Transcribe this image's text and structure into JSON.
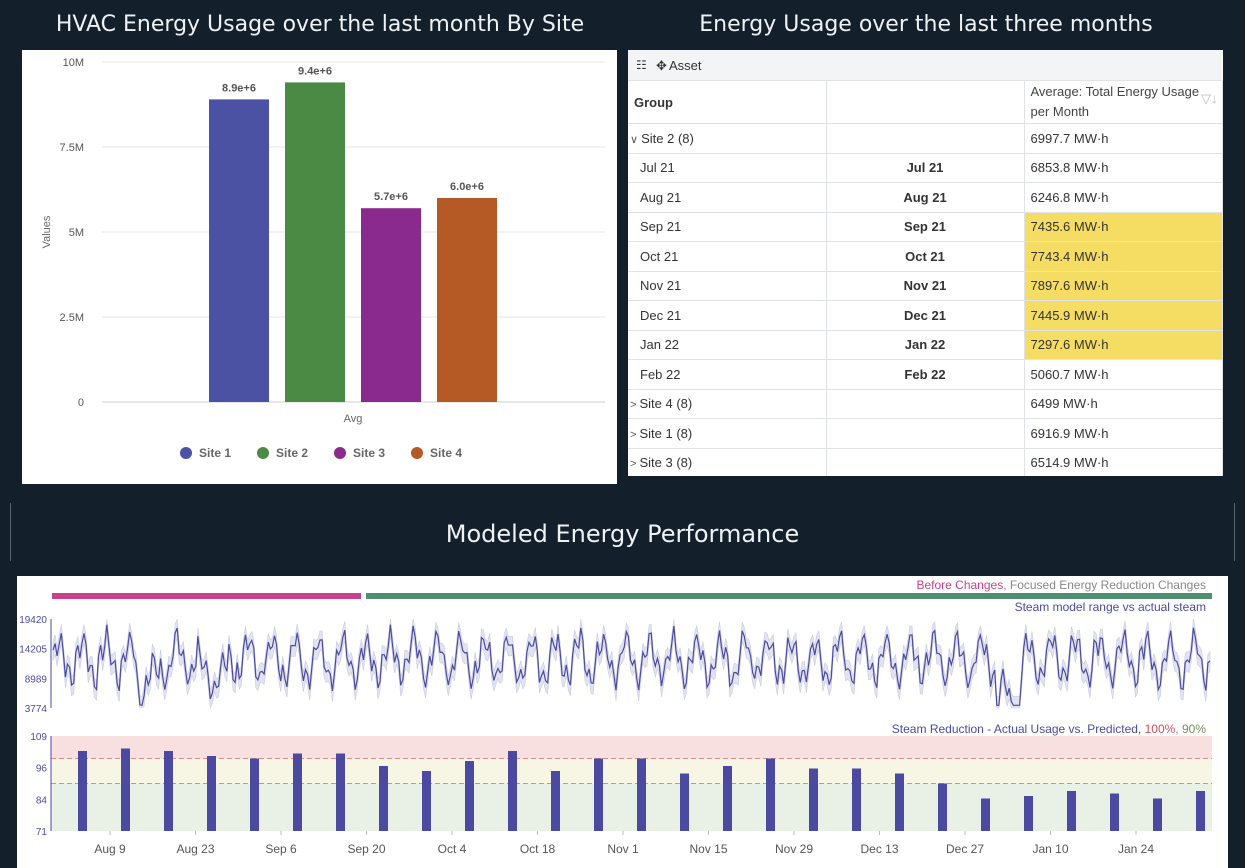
{
  "bar_panel": {
    "title": "HVAC Energy Usage over the last month By Site",
    "legend": [
      "Site 1",
      "Site 2",
      "Site 3",
      "Site 4"
    ]
  },
  "table_panel": {
    "title": "Energy Usage over the last three months",
    "toolbar_asset": "Asset",
    "col_group": "Group",
    "col_value": "Average: Total Energy Usage per Month",
    "rows": [
      {
        "group": "Site 2 (8)",
        "mid": "",
        "value": "6997.7 MW·h",
        "type": "group-open",
        "hl": false
      },
      {
        "group": "Jul 21",
        "mid": "Jul 21",
        "value": "6853.8 MW·h",
        "type": "child",
        "hl": false
      },
      {
        "group": "Aug 21",
        "mid": "Aug 21",
        "value": "6246.8 MW·h",
        "type": "child",
        "hl": false
      },
      {
        "group": "Sep 21",
        "mid": "Sep 21",
        "value": "7435.6 MW·h",
        "type": "child",
        "hl": true
      },
      {
        "group": "Oct 21",
        "mid": "Oct 21",
        "value": "7743.4 MW·h",
        "type": "child",
        "hl": true
      },
      {
        "group": "Nov 21",
        "mid": "Nov 21",
        "value": "7897.6 MW·h",
        "type": "child",
        "hl": true
      },
      {
        "group": "Dec 21",
        "mid": "Dec 21",
        "value": "7445.9 MW·h",
        "type": "child",
        "hl": true
      },
      {
        "group": "Jan 22",
        "mid": "Jan 22",
        "value": "7297.6 MW·h",
        "type": "child",
        "hl": true
      },
      {
        "group": "Feb 22",
        "mid": "Feb 22",
        "value": "5060.7 MW·h",
        "type": "child",
        "hl": false
      },
      {
        "group": "Site 4 (8)",
        "mid": "",
        "value": "6499 MW·h",
        "type": "group",
        "hl": false
      },
      {
        "group": "Site 1 (8)",
        "mid": "",
        "value": "6916.9 MW·h",
        "type": "group",
        "hl": false
      },
      {
        "group": "Site 3 (8)",
        "mid": "",
        "value": "6514.9 MW·h",
        "type": "group",
        "hl": false
      }
    ]
  },
  "modeled": {
    "title": "Modeled Energy Performance",
    "legend_before": "Before Changes",
    "legend_sep": ", ",
    "legend_after": "Focused Energy Reduction Changes",
    "steam_label": "Steam model range vs actual steam",
    "reduction_label": "Steam Reduction - Actual Usage vs. Predicted, ",
    "pct_100": "100%",
    "pct_sep": ", ",
    "pct_90": "90%"
  },
  "colors": {
    "site1": "#4b51a3",
    "site2": "#4a8a45",
    "site3": "#8a2a8e",
    "site4": "#b55a25",
    "before": "#c7418e",
    "after": "#4e8f72",
    "line": "#4b4aa0",
    "band": "#e1e3f0",
    "highlight": "#f5dd63"
  },
  "chart_data": [
    {
      "type": "bar",
      "title": "HVAC Energy Usage over the last month By Site",
      "categories": [
        "Avg"
      ],
      "xlabel": "Avg",
      "ylabel": "Values",
      "ylim": [
        0,
        10000000
      ],
      "yticks": [
        "0",
        "2.5M",
        "5M",
        "7.5M",
        "10M"
      ],
      "series": [
        {
          "name": "Site 1",
          "values": [
            8900000
          ],
          "label": "8.9e+6"
        },
        {
          "name": "Site 2",
          "values": [
            9400000
          ],
          "label": "9.4e+6"
        },
        {
          "name": "Site 3",
          "values": [
            5700000
          ],
          "label": "5.7e+6"
        },
        {
          "name": "Site 4",
          "values": [
            6000000
          ],
          "label": "6.0e+6"
        }
      ],
      "legend": "bottom"
    },
    {
      "type": "line",
      "series_name": "Steam model range vs actual steam",
      "yticks": [
        "3774",
        "8989",
        "14205",
        "19420"
      ],
      "ylim": [
        3774,
        19420
      ]
    },
    {
      "type": "bar",
      "title": "Steam Reduction - Actual Usage vs. Predicted",
      "yticks": [
        "71",
        "84",
        "96",
        "109"
      ],
      "ylim": [
        71,
        109
      ],
      "xticks": [
        "Aug 9",
        "Aug 23",
        "Sep 6",
        "Sep 20",
        "Oct 4",
        "Oct 18",
        "Nov 1",
        "Nov 15",
        "Nov 29",
        "Dec 13",
        "Dec 27",
        "Jan 10",
        "Jan 24"
      ],
      "thresholds": [
        100,
        90
      ],
      "values": [
        103,
        104,
        103,
        101,
        100,
        102,
        102,
        97,
        95,
        99,
        103,
        95,
        100,
        100,
        94,
        97,
        100,
        96,
        96,
        94,
        90,
        84,
        85,
        87,
        86,
        84,
        87
      ]
    }
  ]
}
